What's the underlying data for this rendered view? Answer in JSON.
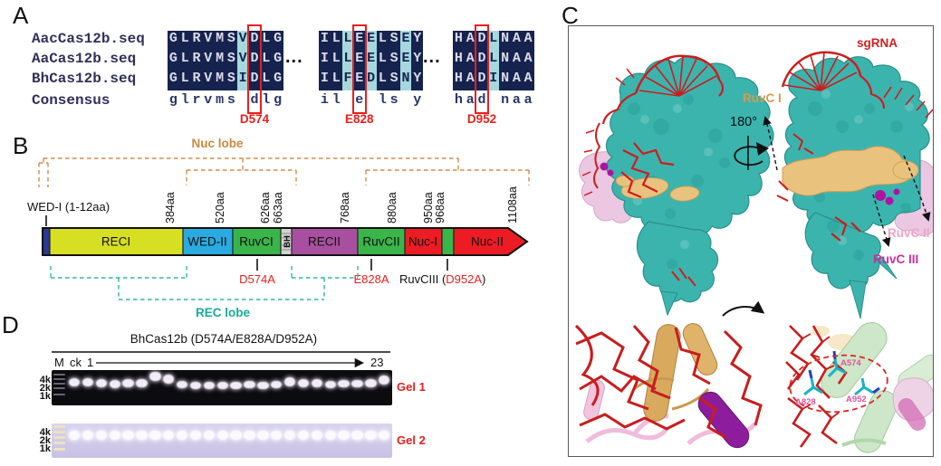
{
  "panel_labels": {
    "a": "A",
    "b": "B",
    "c": "C",
    "d": "D"
  },
  "alignment": {
    "row_names": [
      "AacCas12b.seq",
      "AaCas12b.seq",
      "BhCas12b.seq",
      "Consensus"
    ],
    "separator": "...",
    "blocks": [
      {
        "sequences": [
          "GLRVMSVDLG",
          "GLRVMSVDLG",
          "GLRVMSIDLG",
          "glrvms dlg"
        ],
        "cyan_columns": [
          6
        ],
        "boxed_column": 7,
        "box_label": "D574"
      },
      {
        "sequences": [
          "ILLEELSEY",
          "ILLEELSEY",
          "ILFEDLSNY",
          "il e ls y"
        ],
        "cyan_columns": [
          2,
          4,
          7
        ],
        "boxed_column": 3,
        "box_label": "E828"
      },
      {
        "sequences": [
          "HADLNAA",
          "HADLNAA",
          "HADINAA",
          "had naa"
        ],
        "cyan_columns": [
          3
        ],
        "boxed_column": 2,
        "box_label": "D952"
      }
    ]
  },
  "domain_map": {
    "nuc_lobe_label": "Nuc lobe",
    "rec_lobe_label": "REC lobe",
    "wed1_label": "WED-I (1-12aa)",
    "wed1_color": "#2b3990",
    "position_labels": [
      "384aa",
      "520aa",
      "626aa",
      "663aa",
      "768aa",
      "880aa",
      "950aa",
      "968aa",
      "1108aa"
    ],
    "segments": [
      {
        "label": "RECI",
        "color": "#d7df23"
      },
      {
        "label": "WED-II",
        "color": "#29abe2"
      },
      {
        "label": "RuvCI",
        "color": "#3ab54a"
      },
      {
        "label": "BH",
        "color": "#d2d2d2"
      },
      {
        "label": "RECII",
        "color": "#a8509f"
      },
      {
        "label": "RuvCII",
        "color": "#3ab54a"
      },
      {
        "label": "Nuc-I",
        "color": "#ed1c24"
      },
      {
        "label": "Nuc-II",
        "color": "#ed1c24"
      }
    ],
    "mutation_labels": {
      "m1": "D574A",
      "m2": "E828A",
      "m3_prefix": "RuvCIII (",
      "m3_mut": "D952A",
      "m3_suffix": ")"
    }
  },
  "structure": {
    "sgrna_label": "sgRNA",
    "ruvc1_label": "RuvC I",
    "rotation_label": "180°",
    "ruvc2_label": "RuvC II",
    "ruvc3_label": "RuvC III",
    "residues": [
      "A574",
      "A828",
      "A952"
    ]
  },
  "gels": {
    "title": "BhCas12b (D574A/E828A/D952A)",
    "lane_labels": {
      "marker": "M",
      "control": "ck",
      "first": "1",
      "last": "23"
    },
    "size_markers": [
      "4k",
      "2k",
      "1k"
    ],
    "gel1_label": "Gel 1",
    "gel2_label": "Gel 2"
  },
  "colors": {
    "alignment_navy": "#16234f",
    "alignment_cyan": "#a5d9de",
    "highlight_red": "#e8201e",
    "nuc_lobe_tan": "#d08c50",
    "rec_lobe_teal": "#2fb6a6",
    "protein_teal": "#3cb4ae",
    "ruvc1_tan": "#e9c27e",
    "ruvc2_pink": "#ecc7e2",
    "ruvc3_magenta": "#b012a4",
    "rna_red": "#cc1d1d",
    "gel_label_red": "#e02222"
  }
}
